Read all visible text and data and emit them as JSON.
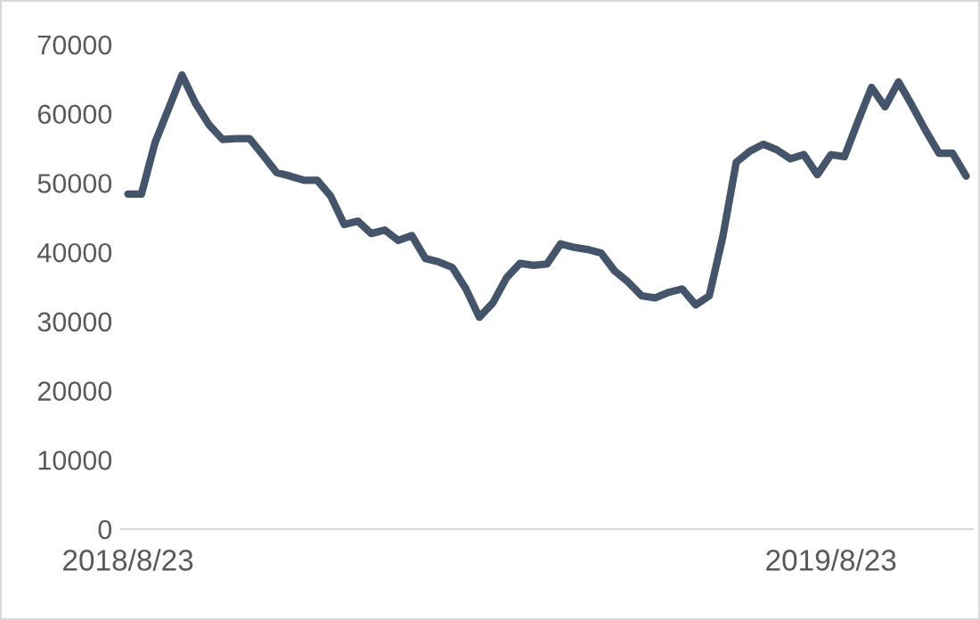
{
  "chart_data": {
    "type": "line",
    "categories": [
      "2018/8/23",
      null,
      null,
      null,
      null,
      null,
      null,
      null,
      null,
      null,
      null,
      null,
      null,
      null,
      null,
      null,
      null,
      null,
      null,
      null,
      null,
      null,
      null,
      null,
      null,
      null,
      null,
      null,
      null,
      null,
      null,
      null,
      null,
      null,
      null,
      null,
      null,
      null,
      null,
      null,
      null,
      null,
      null,
      null,
      null,
      null,
      null,
      null,
      null,
      null,
      null,
      null,
      "2019/8/23",
      null,
      null,
      null,
      null,
      null,
      null,
      null,
      null,
      null,
      null
    ],
    "series": [
      {
        "color": "#44546a",
        "values": [
          48400,
          48400,
          55800,
          60700,
          65600,
          61500,
          58400,
          56300,
          56400,
          56400,
          54000,
          51500,
          51000,
          50400,
          50400,
          48100,
          44000,
          44500,
          42700,
          43200,
          41700,
          42400,
          39100,
          38600,
          37800,
          34700,
          30600,
          32700,
          36300,
          38400,
          38100,
          38300,
          41200,
          40700,
          40400,
          39900,
          37300,
          35700,
          33700,
          33400,
          34200,
          34700,
          32400,
          33700,
          42200,
          53000,
          54600,
          55600,
          54800,
          53500,
          54100,
          51200,
          54100,
          53800,
          58900,
          63800,
          61000,
          64600,
          61200,
          57600,
          54300,
          54300,
          51000
        ]
      }
    ],
    "ylim": [
      0,
      70000
    ],
    "yticks": [
      0,
      10000,
      20000,
      30000,
      40000,
      50000,
      60000,
      70000
    ],
    "grid": false,
    "legend": false,
    "marker": "none",
    "line_style": "solid"
  }
}
